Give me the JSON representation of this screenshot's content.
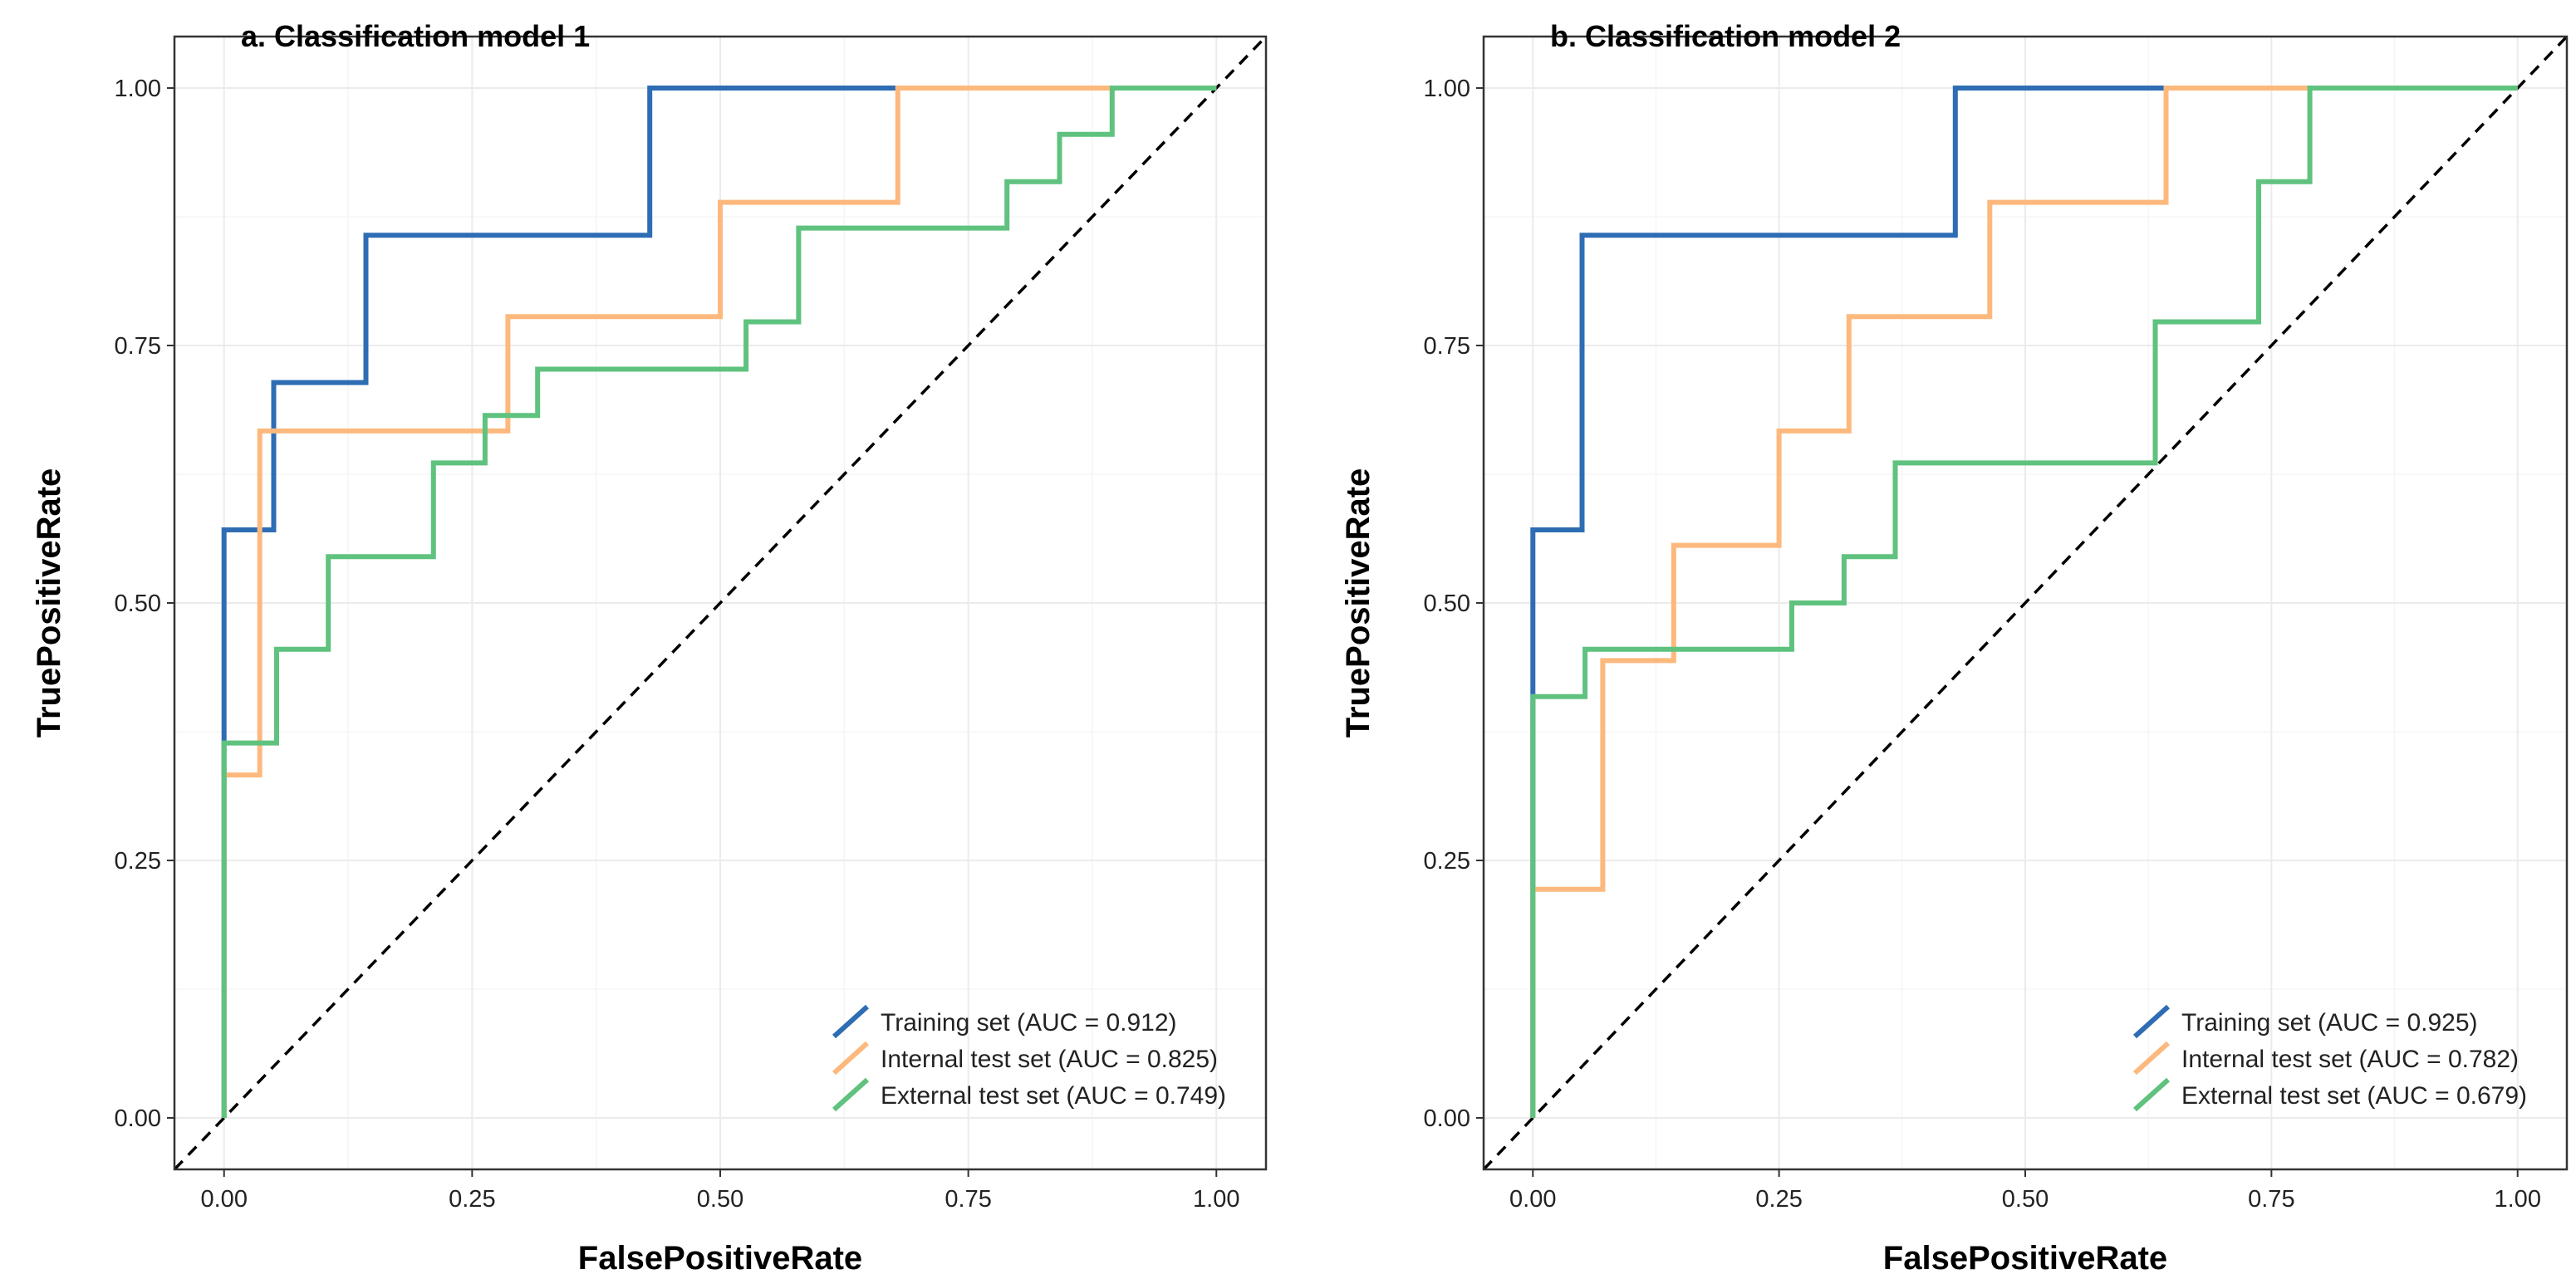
{
  "chart_data": [
    {
      "type": "line",
      "title": "a. Classification model 1",
      "xlabel": "FalsePositiveRate",
      "ylabel": "TruePositiveRate",
      "xlim": [
        -0.05,
        1.05
      ],
      "ylim": [
        -0.05,
        1.05
      ],
      "xticks": [
        0.0,
        0.25,
        0.5,
        0.75,
        1.0
      ],
      "xtick_labels": [
        "0.00",
        "0.25",
        "0.50",
        "0.75",
        "1.00"
      ],
      "yticks": [
        0.0,
        0.25,
        0.5,
        0.75,
        1.0
      ],
      "ytick_labels": [
        "0.00",
        "0.25",
        "0.50",
        "0.75",
        "1.00"
      ],
      "grid": true,
      "legend_position": "bottom-right",
      "reference_line": "dashed diagonal",
      "series": [
        {
          "name": "Training set (AUC = 0.912)",
          "color": "#2e6db4",
          "x": [
            0,
            0,
            0.05,
            0.05,
            0.143,
            0.143,
            0.429,
            0.429,
            1.0
          ],
          "y": [
            0,
            0.571,
            0.571,
            0.714,
            0.714,
            0.857,
            0.857,
            1.0,
            1.0
          ]
        },
        {
          "name": "Internal test set (AUC = 0.825)",
          "color": "#fdb97d",
          "x": [
            0,
            0,
            0.036,
            0.036,
            0.286,
            0.286,
            0.5,
            0.5,
            0.679,
            0.679,
            1.0
          ],
          "y": [
            0,
            0.333,
            0.333,
            0.667,
            0.667,
            0.778,
            0.778,
            0.889,
            0.889,
            1.0,
            1.0
          ]
        },
        {
          "name": "External test set (AUC = 0.749)",
          "color": "#5fc27e",
          "x": [
            0,
            0,
            0.053,
            0.053,
            0.105,
            0.105,
            0.211,
            0.211,
            0.263,
            0.263,
            0.316,
            0.316,
            0.526,
            0.526,
            0.579,
            0.579,
            0.789,
            0.789,
            0.842,
            0.842,
            0.895,
            0.895,
            1.0
          ],
          "y": [
            0,
            0.364,
            0.364,
            0.455,
            0.455,
            0.545,
            0.545,
            0.636,
            0.636,
            0.682,
            0.682,
            0.727,
            0.727,
            0.773,
            0.773,
            0.864,
            0.864,
            0.909,
            0.909,
            0.955,
            0.955,
            1.0,
            1.0
          ]
        }
      ]
    },
    {
      "type": "line",
      "title": "b. Classification model 2",
      "xlabel": "FalsePositiveRate",
      "ylabel": "TruePositiveRate",
      "xlim": [
        -0.05,
        1.05
      ],
      "ylim": [
        -0.05,
        1.05
      ],
      "xticks": [
        0.0,
        0.25,
        0.5,
        0.75,
        1.0
      ],
      "xtick_labels": [
        "0.00",
        "0.25",
        "0.50",
        "0.75",
        "1.00"
      ],
      "yticks": [
        0.0,
        0.25,
        0.5,
        0.75,
        1.0
      ],
      "ytick_labels": [
        "0.00",
        "0.25",
        "0.50",
        "0.75",
        "1.00"
      ],
      "grid": true,
      "legend_position": "bottom-right",
      "reference_line": "dashed diagonal",
      "series": [
        {
          "name": "Training set (AUC = 0.925)",
          "color": "#2e6db4",
          "x": [
            0,
            0,
            0.05,
            0.05,
            0.429,
            0.429,
            1.0
          ],
          "y": [
            0,
            0.571,
            0.571,
            0.857,
            0.857,
            1.0,
            1.0
          ]
        },
        {
          "name": "Internal test set (AUC = 0.782)",
          "color": "#fdb97d",
          "x": [
            0,
            0,
            0.071,
            0.071,
            0.143,
            0.143,
            0.25,
            0.25,
            0.321,
            0.321,
            0.464,
            0.464,
            0.643,
            0.643,
            1.0
          ],
          "y": [
            0,
            0.222,
            0.222,
            0.444,
            0.444,
            0.556,
            0.556,
            0.667,
            0.667,
            0.778,
            0.778,
            0.889,
            0.889,
            1.0,
            1.0
          ]
        },
        {
          "name": "External test set (AUC = 0.679)",
          "color": "#5fc27e",
          "x": [
            0,
            0,
            0.053,
            0.053,
            0.263,
            0.263,
            0.316,
            0.316,
            0.368,
            0.368,
            0.632,
            0.632,
            0.737,
            0.737,
            0.789,
            0.789,
            1.0
          ],
          "y": [
            0,
            0.409,
            0.409,
            0.455,
            0.455,
            0.5,
            0.5,
            0.545,
            0.545,
            0.636,
            0.636,
            0.773,
            0.773,
            0.909,
            0.909,
            1.0,
            1.0
          ]
        }
      ]
    }
  ]
}
